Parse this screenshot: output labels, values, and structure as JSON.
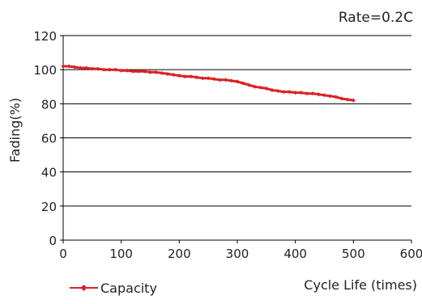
{
  "chart_data": {
    "type": "line",
    "annotation": "Rate=0.2C",
    "xlabel": "Cycle Life (times)",
    "ylabel": "Fading(%)",
    "xlim": [
      0,
      600
    ],
    "ylim": [
      0,
      120
    ],
    "xticks": [
      0,
      100,
      200,
      300,
      400,
      500,
      600
    ],
    "yticks": [
      0,
      20,
      40,
      60,
      80,
      100,
      120
    ],
    "grid": "horizontal",
    "legend": "bottom-left",
    "series": [
      {
        "name": "Capacity",
        "color": "#dd1f26",
        "points": [
          [
            0,
            102
          ],
          [
            10,
            102
          ],
          [
            20,
            101.5
          ],
          [
            30,
            101
          ],
          [
            40,
            101
          ],
          [
            50,
            100.5
          ],
          [
            60,
            100.5
          ],
          [
            70,
            100
          ],
          [
            80,
            100
          ],
          [
            90,
            100
          ],
          [
            100,
            99.5
          ],
          [
            110,
            99.5
          ],
          [
            120,
            99
          ],
          [
            130,
            99
          ],
          [
            140,
            99
          ],
          [
            150,
            98.5
          ],
          [
            160,
            98.5
          ],
          [
            170,
            98
          ],
          [
            180,
            97.5
          ],
          [
            190,
            97
          ],
          [
            200,
            96.5
          ],
          [
            210,
            96
          ],
          [
            220,
            96
          ],
          [
            230,
            95.5
          ],
          [
            240,
            95
          ],
          [
            250,
            95
          ],
          [
            260,
            94.5
          ],
          [
            270,
            94
          ],
          [
            280,
            94
          ],
          [
            290,
            93.5
          ],
          [
            300,
            93
          ],
          [
            310,
            92
          ],
          [
            320,
            91
          ],
          [
            330,
            90
          ],
          [
            340,
            89.5
          ],
          [
            350,
            89
          ],
          [
            360,
            88
          ],
          [
            370,
            87.5
          ],
          [
            380,
            87
          ],
          [
            390,
            87
          ],
          [
            400,
            86.5
          ],
          [
            410,
            86.5
          ],
          [
            420,
            86
          ],
          [
            430,
            86
          ],
          [
            440,
            85.5
          ],
          [
            450,
            85
          ],
          [
            460,
            84.5
          ],
          [
            470,
            84
          ],
          [
            480,
            83
          ],
          [
            490,
            82.5
          ],
          [
            500,
            82
          ]
        ]
      }
    ]
  }
}
